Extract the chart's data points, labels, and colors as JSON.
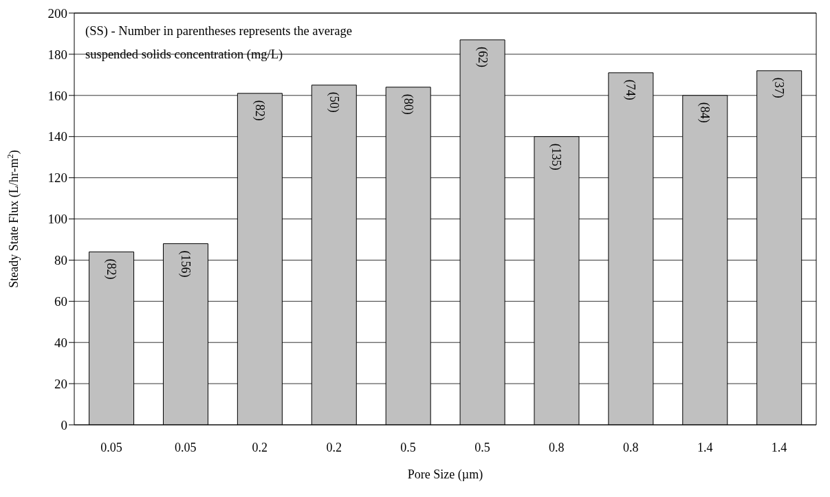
{
  "chart_data": {
    "type": "bar",
    "xlabel": "Pore Size (µm)",
    "ylabel": "Steady State Flux (L/hr-m$^{2}$)",
    "annotations": [
      "(SS) - Number in parentheses represents the average suspended solids concentration (mg/L)",
      {
        "text": "(82)",
        "x": "0.05",
        "y": 84
      },
      {
        "text": "(156)",
        "y": 88
      },
      {
        "text": "(82)",
        "x": "0.2",
        "y": 161
      },
      {
        "text": "(50)",
        "y": 165
      },
      {
        "text": "(80)",
        "x": "0.5",
        "y": 164
      },
      {
        "text": "(62)",
        "y": 187
      },
      {
        "text": "(135)",
        "x": "0.8",
        "y": 140
      },
      {
        "text": "(74)",
        "y": 171
      },
      {
        "text": "(84)",
        "x": "1.4",
        "y": 160
      },
      {
        "text": "(37)",
        "y": 172
      }
    ],
    "categories": [
      "0.05",
      "0.05",
      "0.2",
      "0.2",
      "0.5",
      "0.5",
      "0.8",
      "0.8",
      "1.4",
      "1.4"
    ],
    "values": [
      84,
      88,
      161,
      165,
      164,
      187,
      140,
      171,
      160,
      172
    ],
    "color": "#c0c0c0",
    "ylim": [
      0,
      200
    ],
    "yticks": [
      0,
      20,
      40,
      60,
      80,
      100,
      120,
      140,
      160,
      180,
      200
    ],
    "grid": "y",
    "legend": false
  }
}
